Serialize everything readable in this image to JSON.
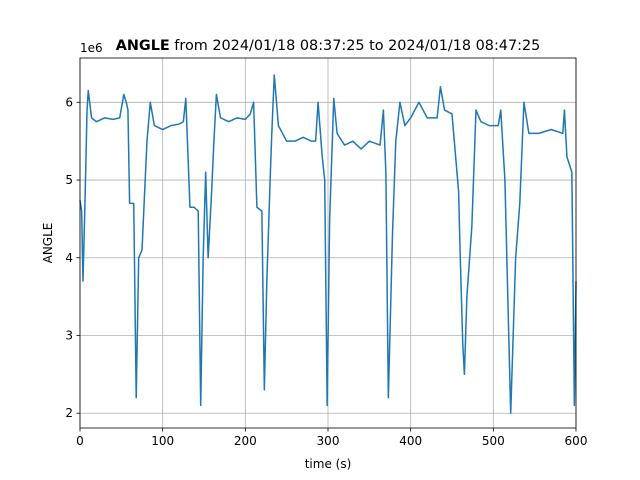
{
  "chart_data": {
    "type": "line",
    "title_bold": "ANGLE",
    "title": " from 2024/01/18 08:37:25 to 2024/01/18 08:47:25",
    "y_offset_label": "1e6",
    "xlabel": "time (s)",
    "ylabel": "ANGLE",
    "xlim": [
      0,
      600
    ],
    "xticks": [
      0,
      100,
      200,
      300,
      400,
      500,
      600
    ],
    "ylim": [
      1.81,
      6.57
    ],
    "yticks": [
      2,
      3,
      4,
      5,
      6
    ],
    "grid": true,
    "series": [
      {
        "name": "ANGLE",
        "color": "#1f77b4",
        "x": [
          0,
          2,
          3.6,
          6,
          8.5,
          10,
          14,
          20,
          30,
          40,
          48,
          53,
          56,
          58,
          60,
          65,
          68,
          71,
          75,
          81,
          85,
          90,
          100,
          110,
          120,
          125,
          128,
          133,
          138,
          143,
          146,
          149,
          152,
          155,
          159,
          162,
          165,
          170,
          180,
          190,
          200,
          206,
          210,
          214,
          220,
          223,
          226,
          230,
          232,
          235,
          240,
          250,
          260,
          270,
          280,
          285,
          288,
          293,
          296,
          299,
          302,
          307,
          311,
          320,
          330,
          340,
          350,
          363,
          367,
          370,
          373,
          378,
          382,
          387,
          393,
          400,
          410,
          420,
          432,
          436,
          441,
          450,
          458,
          460,
          463,
          465,
          468,
          474,
          479,
          485,
          495,
          506,
          509,
          514,
          521,
          527,
          532,
          537,
          543,
          555,
          570,
          584,
          586,
          589,
          595,
          598,
          600
        ],
        "values": [
          4.74,
          4.6,
          3.7,
          4.7,
          5.9,
          6.15,
          5.8,
          5.75,
          5.8,
          5.78,
          5.8,
          6.1,
          6.0,
          5.9,
          4.7,
          4.7,
          2.2,
          4.0,
          4.1,
          5.5,
          6.0,
          5.7,
          5.65,
          5.7,
          5.72,
          5.75,
          6.05,
          4.65,
          4.65,
          4.6,
          2.1,
          4.0,
          5.1,
          4.0,
          4.8,
          5.5,
          6.1,
          5.8,
          5.75,
          5.8,
          5.78,
          5.85,
          6.0,
          4.65,
          4.6,
          2.3,
          3.7,
          5.0,
          5.6,
          6.35,
          5.7,
          5.5,
          5.5,
          5.55,
          5.5,
          5.5,
          6.0,
          5.3,
          5.0,
          2.1,
          4.5,
          6.05,
          5.6,
          5.45,
          5.5,
          5.4,
          5.5,
          5.45,
          5.9,
          5.1,
          2.2,
          4.3,
          5.5,
          6.0,
          5.7,
          5.8,
          6.0,
          5.8,
          5.8,
          6.2,
          5.9,
          5.85,
          4.85,
          4.0,
          2.9,
          2.5,
          3.5,
          4.4,
          5.9,
          5.75,
          5.7,
          5.7,
          5.9,
          5.0,
          2.0,
          4.0,
          4.7,
          6.0,
          5.6,
          5.6,
          5.65,
          5.6,
          5.9,
          5.3,
          5.1,
          2.1,
          3.7
        ]
      }
    ]
  }
}
